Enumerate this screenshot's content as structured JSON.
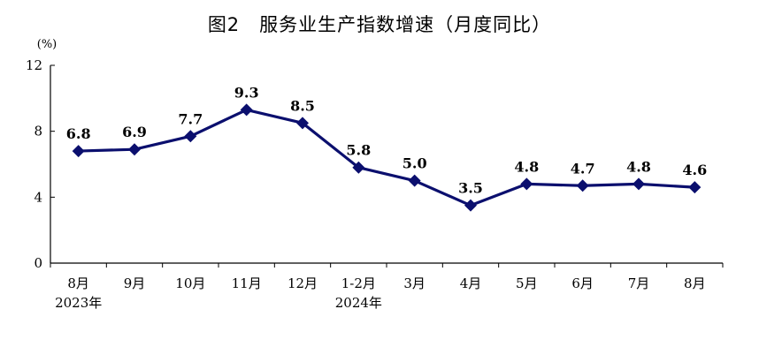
{
  "title": "图2　服务业生产指数增速（月度同比）",
  "colors": {
    "line": "#0b0f6e",
    "axis": "#000000",
    "text": "#000000"
  },
  "chart_data": {
    "type": "line",
    "title": "图2　服务业生产指数增速（月度同比）",
    "ylabel": "(%)",
    "ylim": [
      0,
      12
    ],
    "yticks": [
      "0",
      "4",
      "8",
      "12"
    ],
    "ytick_values": [
      0,
      4,
      8,
      12
    ],
    "grid": false,
    "categories": [
      "8月",
      "9月",
      "10月",
      "11月",
      "12月",
      "1-2月",
      "3月",
      "4月",
      "5月",
      "6月",
      "7月",
      "8月"
    ],
    "year_labels": [
      "2023年",
      "",
      "",
      "",
      "",
      "2024年",
      "",
      "",
      "",
      "",
      "",
      ""
    ],
    "series": [
      {
        "values": [
          6.8,
          6.9,
          7.7,
          9.3,
          8.5,
          5.8,
          5.0,
          3.5,
          4.8,
          4.7,
          4.8,
          4.6
        ],
        "labels": [
          "6.8",
          "6.9",
          "7.7",
          "9.3",
          "8.5",
          "5.8",
          "5.0",
          "3.5",
          "4.8",
          "4.7",
          "4.8",
          "4.6"
        ],
        "marker": "diamond"
      }
    ]
  }
}
